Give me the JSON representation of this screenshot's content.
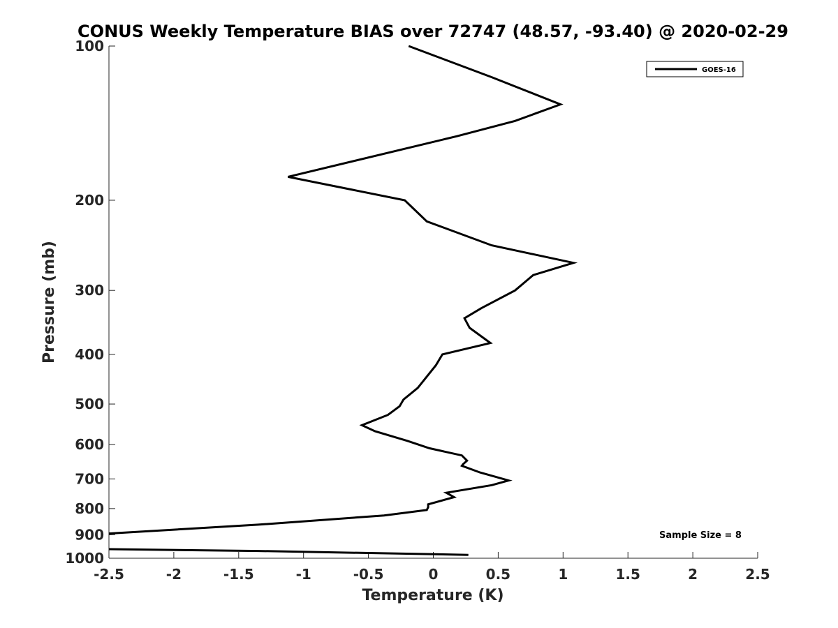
{
  "chart_data": {
    "type": "line",
    "title": "CONUS Weekly Temperature BIAS over 72747 (48.57, -93.40) @ 2020-02-29",
    "xlabel": "Temperature (K)",
    "ylabel": "Pressure (mb)",
    "xlim": [
      -2.5,
      2.5
    ],
    "ylim": [
      1000,
      100
    ],
    "y_scale": "log",
    "y_reversed": true,
    "grid": false,
    "x_ticks": [
      "-2.5",
      "-2",
      "-1.5",
      "-1",
      "-0.5",
      "0",
      "0.5",
      "1",
      "1.5",
      "2",
      "2.5"
    ],
    "y_ticks": [
      "100",
      "200",
      "300",
      "400",
      "500",
      "600",
      "700",
      "800",
      "900",
      "1000"
    ],
    "legend_position": "top-right",
    "annotation": "Sample Size = 8",
    "series": [
      {
        "name": "GOES-16",
        "color": "#000000",
        "points": [
          [
            -0.19,
            100
          ],
          [
            0.45,
            115
          ],
          [
            0.98,
            130
          ],
          [
            0.63,
            140
          ],
          [
            0.18,
            150
          ],
          [
            -1.12,
            180
          ],
          [
            -0.22,
            200
          ],
          [
            -0.05,
            220
          ],
          [
            0.45,
            245
          ],
          [
            1.08,
            265
          ],
          [
            0.77,
            280
          ],
          [
            0.63,
            300
          ],
          [
            0.37,
            325
          ],
          [
            0.24,
            340
          ],
          [
            0.28,
            355
          ],
          [
            0.44,
            380
          ],
          [
            0.07,
            400
          ],
          [
            0.02,
            420
          ],
          [
            -0.12,
            465
          ],
          [
            -0.23,
            490
          ],
          [
            -0.26,
            505
          ],
          [
            -0.35,
            525
          ],
          [
            -0.55,
            550
          ],
          [
            -0.45,
            565
          ],
          [
            -0.2,
            590
          ],
          [
            -0.03,
            610
          ],
          [
            0.22,
            630
          ],
          [
            0.26,
            645
          ],
          [
            0.23,
            655
          ],
          [
            0.22,
            660
          ],
          [
            0.36,
            680
          ],
          [
            0.58,
            705
          ],
          [
            0.45,
            720
          ],
          [
            0.1,
            745
          ],
          [
            0.16,
            760
          ],
          [
            -0.04,
            785
          ],
          [
            -0.04,
            795
          ],
          [
            -0.05,
            805
          ],
          [
            -0.38,
            825
          ],
          [
            -1.35,
            860
          ],
          [
            -2.5,
            895
          ]
        ]
      },
      {
        "name": "",
        "color": "#000000",
        "points": [
          [
            -2.5,
            960
          ],
          [
            -1.35,
            968
          ],
          [
            0.27,
            985
          ]
        ]
      }
    ]
  }
}
